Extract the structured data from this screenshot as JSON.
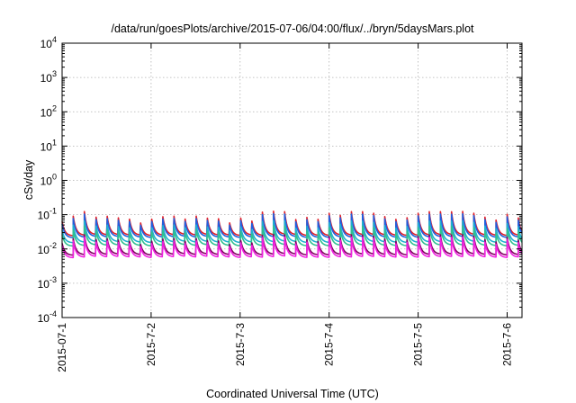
{
  "chart_data": {
    "type": "line",
    "title": "/data/run/goesPlots/archive/2015-07-06/04:00/flux/../bryn/5daysMars.plot",
    "xlabel": "Coordinated Universal Time (UTC)",
    "ylabel": "cSv/day",
    "x_range": [
      "2015-07-01T00:00",
      "2015-07-06T04:00"
    ],
    "xlim_days": [
      0,
      5.1667
    ],
    "y_scale": "log",
    "ylim": [
      0.0001,
      10000
    ],
    "grid": true,
    "x_ticks": [
      {
        "value": 0,
        "label": "2015-07-1"
      },
      {
        "value": 1,
        "label": "2015-7-2"
      },
      {
        "value": 2,
        "label": "2015-7-3"
      },
      {
        "value": 3,
        "label": "2015-7-4"
      },
      {
        "value": 4,
        "label": "2015-7-5"
      },
      {
        "value": 5,
        "label": "2015-7-6"
      }
    ],
    "y_ticks": [
      {
        "value": 0.0001,
        "base": "10",
        "exp": "-4"
      },
      {
        "value": 0.001,
        "base": "10",
        "exp": "-3"
      },
      {
        "value": 0.01,
        "base": "10",
        "exp": "-2"
      },
      {
        "value": 0.1,
        "base": "10",
        "exp": "-1"
      },
      {
        "value": 1,
        "base": "10",
        "exp": "0"
      },
      {
        "value": 10,
        "base": "10",
        "exp": "1"
      },
      {
        "value": 100,
        "base": "10",
        "exp": "2"
      },
      {
        "value": 1000,
        "base": "10",
        "exp": "3"
      },
      {
        "value": 10000,
        "base": "10",
        "exp": "4"
      }
    ],
    "series": [
      {
        "color": "#e0202a",
        "peak": 0.092,
        "trough": 0.024
      },
      {
        "color": "#2060e0",
        "peak": 0.078,
        "trough": 0.021
      },
      {
        "color": "#20b0d0",
        "peak": 0.05,
        "trough": 0.015
      },
      {
        "color": "#30c090",
        "peak": 0.036,
        "trough": 0.012
      },
      {
        "color": "#800060",
        "peak": 0.02,
        "trough": 0.0065
      },
      {
        "color": "#f020e0",
        "peak": 0.017,
        "trough": 0.0055
      }
    ],
    "spikes_per_day": 8
  }
}
